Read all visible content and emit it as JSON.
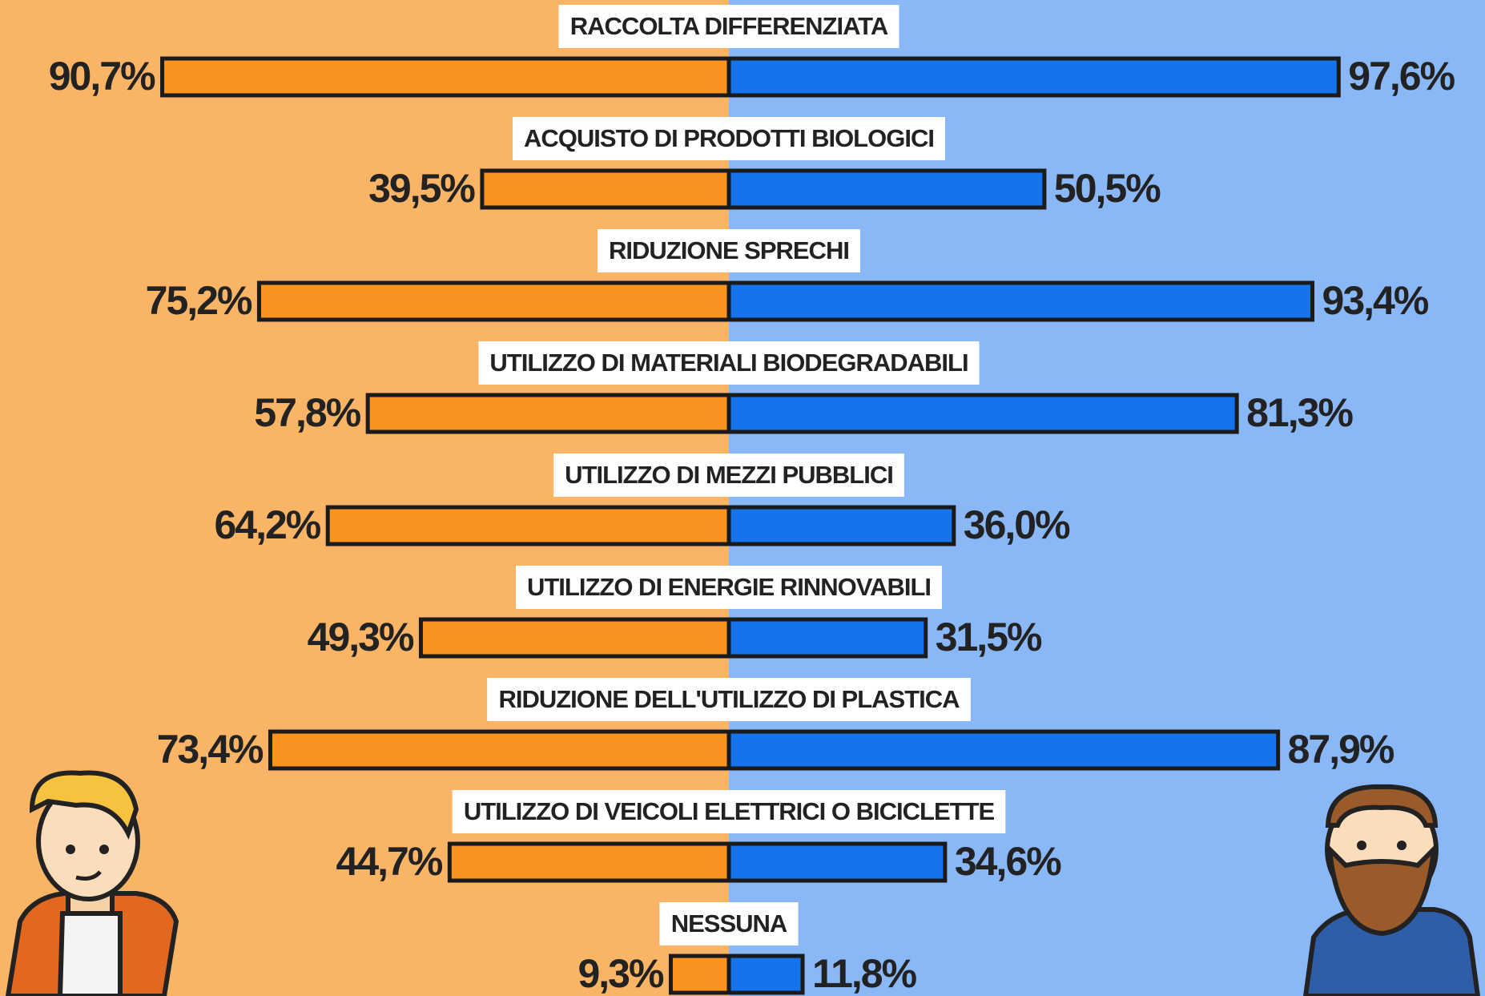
{
  "chart_data": {
    "type": "butterfly-bar",
    "categories": [
      "RACCOLTA DIFFERENZIATA",
      "ACQUISTO DI PRODOTTI BIOLOGICI",
      "RIDUZIONE SPRECHI",
      "UTILIZZO DI MATERIALI BIODEGRADABILI",
      "UTILIZZO DI MEZZI PUBBLICI",
      "UTILIZZO DI ENERGIE RINNOVABILI",
      "RIDUZIONE DELL'UTILIZZO DI PLASTICA",
      "UTILIZZO DI VEICOLI ELETTRICI O BICICLETTE",
      "NESSUNA"
    ],
    "series": [
      {
        "color": "#f7931e",
        "side": "left",
        "values": [
          90.7,
          39.5,
          75.2,
          57.8,
          64.2,
          49.3,
          73.4,
          44.7,
          9.3
        ],
        "value_labels": [
          "90,7%",
          "39,5%",
          "75,2%",
          "57,8%",
          "64,2%",
          "49,3%",
          "73,4%",
          "44,7%",
          "9,3%"
        ]
      },
      {
        "color": "#1673ee",
        "side": "right",
        "values": [
          97.6,
          50.5,
          93.4,
          81.3,
          36.0,
          31.5,
          87.9,
          34.6,
          11.8
        ],
        "value_labels": [
          "97,6%",
          "50,5%",
          "93,4%",
          "81,3%",
          "36,0%",
          "31,5%",
          "87,9%",
          "34,6%",
          "11,8%"
        ]
      }
    ]
  }
}
